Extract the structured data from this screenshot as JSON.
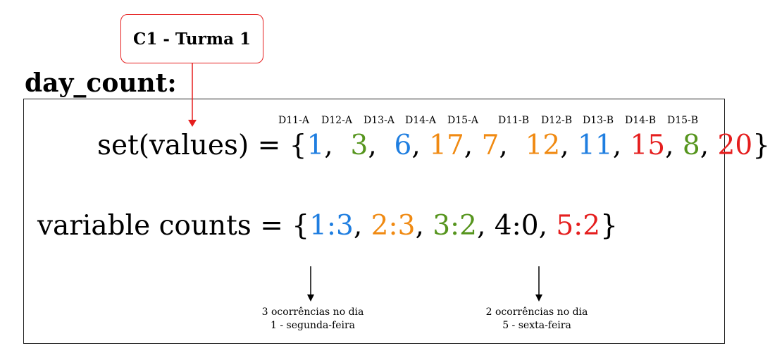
{
  "callout": {
    "label": "C1 - Turma 1"
  },
  "title": "day_count:",
  "day_labels": [
    "D11-A",
    "D12-A",
    "D13-A",
    "D14-A",
    "D15-A",
    "D11-B",
    "D12-B",
    "D13-B",
    "D14-B",
    "D15-B"
  ],
  "set_values": {
    "prefix": "set(values) = {",
    "suffix": "}",
    "items": [
      {
        "value": "1",
        "color": "#1f7ee0",
        "sep": ",  "
      },
      {
        "value": "3",
        "color": "#56951e",
        "sep": ",  "
      },
      {
        "value": "6",
        "color": "#1f7ee0",
        "sep": ", "
      },
      {
        "value": "17",
        "color": "#f08a12",
        "sep": ", "
      },
      {
        "value": "7",
        "color": "#f08a12",
        "sep": ",  "
      },
      {
        "value": "12",
        "color": "#f08a12",
        "sep": ", "
      },
      {
        "value": "11",
        "color": "#1f7ee0",
        "sep": ", "
      },
      {
        "value": "15",
        "color": "#e51e1e",
        "sep": ", "
      },
      {
        "value": "8",
        "color": "#56951e",
        "sep": ", "
      },
      {
        "value": "20",
        "color": "#e51e1e",
        "sep": ""
      }
    ]
  },
  "variable_counts": {
    "prefix": "variable counts = {",
    "suffix": "}",
    "items": [
      {
        "value": "1:3",
        "color": "#1f7ee0",
        "sep": ", "
      },
      {
        "value": "2:3",
        "color": "#f08a12",
        "sep": ", "
      },
      {
        "value": "3:2",
        "color": "#56951e",
        "sep": ", "
      },
      {
        "value": "4:0",
        "color": "#000000",
        "sep": ", "
      },
      {
        "value": "5:2",
        "color": "#e51e1e",
        "sep": ""
      }
    ]
  },
  "notes": {
    "left": {
      "line1": "3 ocorrências no dia",
      "line2": "1 - segunda-feira"
    },
    "right": {
      "line1": "2 ocorrências no dia",
      "line2": "5 - sexta-feira"
    }
  }
}
